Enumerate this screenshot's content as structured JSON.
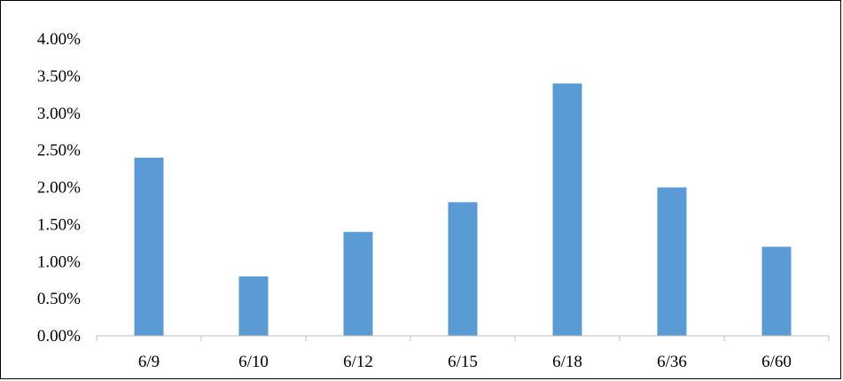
{
  "chart_data": {
    "type": "bar",
    "categories": [
      "6/9",
      "6/10",
      "6/12",
      "6/15",
      "6/18",
      "6/36",
      "6/60"
    ],
    "values": [
      0.024,
      0.008,
      0.014,
      0.018,
      0.034,
      0.02,
      0.012
    ],
    "yticks": [
      "0.00%",
      "0.50%",
      "1.00%",
      "1.50%",
      "2.00%",
      "2.50%",
      "3.00%",
      "3.50%",
      "4.00%"
    ],
    "ylim": [
      0,
      0.04
    ],
    "ytick_step": 0.005,
    "title": "",
    "xlabel": "",
    "ylabel": "",
    "grid": false,
    "legend": "none",
    "colors": {
      "bar": "#5B9BD5",
      "axis": "#BFBFBF",
      "frame": "#000000",
      "text": "#000000"
    }
  }
}
